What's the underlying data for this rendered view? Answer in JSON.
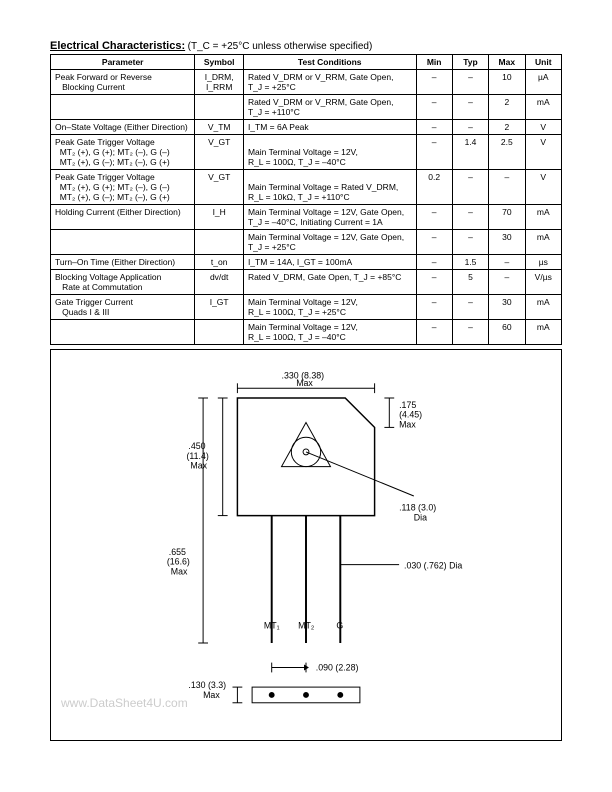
{
  "header": {
    "title": "Electrical Characteristics:",
    "condition": "(T_C = +25°C unless otherwise specified)"
  },
  "table": {
    "headers": [
      "Parameter",
      "Symbol",
      "Test Conditions",
      "Min",
      "Typ",
      "Max",
      "Unit"
    ],
    "rows": [
      {
        "param": "Peak Forward or Reverse\n   Blocking Current",
        "symbol": "I_DRM,\nI_RRM",
        "cond": "Rated V_DRM or V_RRM, Gate Open,\nT_J = +25°C",
        "min": "–",
        "typ": "–",
        "max": "10",
        "unit": "µA"
      },
      {
        "param": "",
        "symbol": "",
        "cond": "Rated V_DRM or V_RRM, Gate Open,\nT_J = +110°C",
        "min": "–",
        "typ": "–",
        "max": "2",
        "unit": "mA"
      },
      {
        "param": "On–State Voltage (Either Direction)",
        "symbol": "V_TM",
        "cond": "I_TM = 6A Peak",
        "min": "–",
        "typ": "–",
        "max": "2",
        "unit": "V"
      },
      {
        "param": "Peak Gate Trigger Voltage\n  MT₂ (+), G (+);  MT₂ (–), G (–)\n  MT₂ (+), G (–); MT₂ (–), G (+)",
        "symbol": "V_GT",
        "cond": "\nMain Terminal Voltage = 12V,\nR_L = 100Ω, T_J = –40°C",
        "min": "–",
        "typ": "1.4",
        "max": "2.5",
        "unit": "V"
      },
      {
        "param": "Peak Gate Trigger Voltage\n  MT₂ (+), G (+);  MT₂ (–), G (–)\n  MT₂ (+), G (–); MT₂ (–), G (+)",
        "symbol": "V_GT",
        "cond": "\nMain Terminal Voltage = Rated V_DRM,\nR_L = 10kΩ,  T_J = +110°C",
        "min": "0.2",
        "typ": "–",
        "max": "–",
        "unit": "V"
      },
      {
        "param": "Holding Current (Either Direction)",
        "symbol": "I_H",
        "cond": "Main Terminal Voltage = 12V, Gate Open,\nT_J = –40°C, Initiating Current = 1A",
        "min": "–",
        "typ": "–",
        "max": "70",
        "unit": "mA"
      },
      {
        "param": "",
        "symbol": "",
        "cond": "Main Terminal Voltage = 12V, Gate Open,\nT_J = +25°C",
        "min": "–",
        "typ": "–",
        "max": "30",
        "unit": "mA"
      },
      {
        "param": "Turn–On Time (Either Direction)",
        "symbol": "t_on",
        "cond": "I_TM = 14A, I_GT = 100mA",
        "min": "–",
        "typ": "1.5",
        "max": "–",
        "unit": "µs"
      },
      {
        "param": "Blocking Voltage Application\n   Rate at Commutation",
        "symbol": "dv/dt",
        "cond": "Rated V_DRM, Gate Open, T_J = +85°C",
        "min": "–",
        "typ": "5",
        "max": "–",
        "unit": "V/µs"
      },
      {
        "param": "Gate Trigger Current\n   Quads I & III",
        "symbol": "I_GT",
        "cond": "Main Terminal Voltage = 12V,\nR_L = 100Ω,  T_J = +25°C",
        "min": "–",
        "typ": "–",
        "max": "30",
        "unit": "mA"
      },
      {
        "param": "",
        "symbol": "",
        "cond": "Main Terminal Voltage = 12V,\nR_L = 100Ω,  T_J = –40°C",
        "min": "–",
        "typ": "–",
        "max": "60",
        "unit": "mA"
      }
    ]
  },
  "diagram": {
    "dims": {
      "body_w": ".330 (8.38)\nMax",
      "body_h": ".450\n(11.4)\nMax",
      "chamfer": ".175\n(4.45)\nMax",
      "hole": ".118 (3.0)\nDia",
      "total_h": ".655\n(16.6)\nMax",
      "lead_dia": ".030 (.762) Dia",
      "pitch": ".090 (2.28)",
      "lead_len": ".130 (3.3)\nMax"
    },
    "pins": [
      "MT₁",
      "MT₂",
      "G"
    ],
    "watermark": "www.DataSheet4U.com"
  }
}
